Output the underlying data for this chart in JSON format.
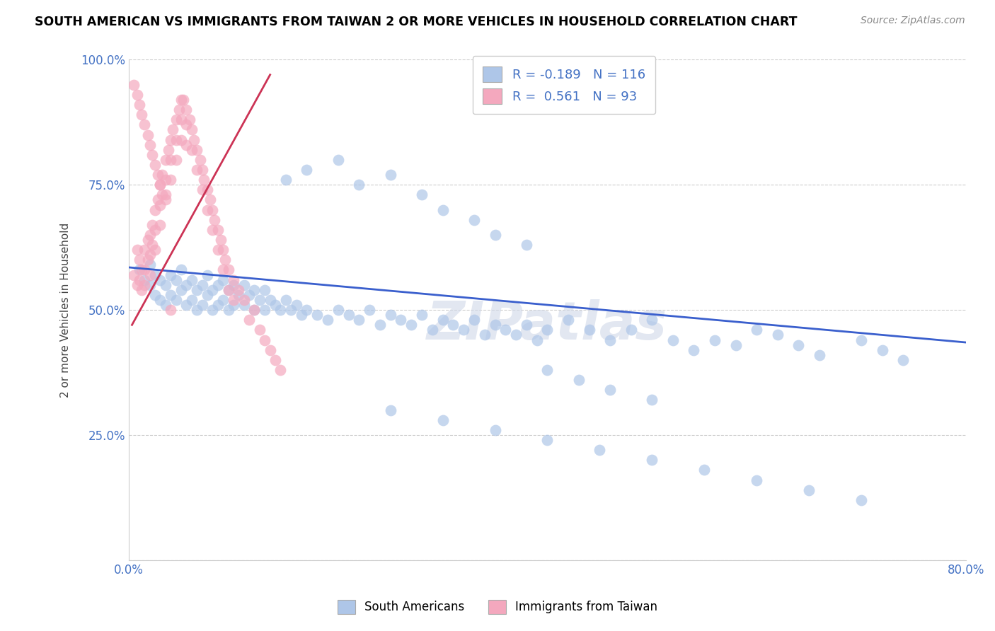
{
  "title": "SOUTH AMERICAN VS IMMIGRANTS FROM TAIWAN 2 OR MORE VEHICLES IN HOUSEHOLD CORRELATION CHART",
  "source": "Source: ZipAtlas.com",
  "ylabel": "2 or more Vehicles in Household",
  "xmin": 0.0,
  "xmax": 0.8,
  "ymin": 0.0,
  "ymax": 1.0,
  "blue_color": "#aec6e8",
  "pink_color": "#f4a8be",
  "blue_line_color": "#3a5fcd",
  "pink_line_color": "#cc3355",
  "legend_blue_r": "-0.189",
  "legend_blue_n": "116",
  "legend_pink_r": "0.561",
  "legend_pink_n": "93",
  "legend_blue_label": "South Americans",
  "legend_pink_label": "Immigrants from Taiwan",
  "blue_line_x0": 0.0,
  "blue_line_y0": 0.585,
  "blue_line_x1": 0.8,
  "blue_line_y1": 0.435,
  "pink_line_x0": 0.003,
  "pink_line_y0": 0.47,
  "pink_line_x1": 0.135,
  "pink_line_y1": 0.97,
  "blue_scatter_x": [
    0.01,
    0.015,
    0.02,
    0.02,
    0.025,
    0.025,
    0.03,
    0.03,
    0.035,
    0.035,
    0.04,
    0.04,
    0.045,
    0.045,
    0.05,
    0.05,
    0.055,
    0.055,
    0.06,
    0.06,
    0.065,
    0.065,
    0.07,
    0.07,
    0.075,
    0.075,
    0.08,
    0.08,
    0.085,
    0.085,
    0.09,
    0.09,
    0.095,
    0.095,
    0.1,
    0.1,
    0.105,
    0.11,
    0.11,
    0.115,
    0.12,
    0.12,
    0.125,
    0.13,
    0.13,
    0.135,
    0.14,
    0.145,
    0.15,
    0.155,
    0.16,
    0.165,
    0.17,
    0.18,
    0.19,
    0.2,
    0.21,
    0.22,
    0.23,
    0.24,
    0.25,
    0.26,
    0.27,
    0.28,
    0.29,
    0.3,
    0.31,
    0.32,
    0.33,
    0.34,
    0.35,
    0.36,
    0.37,
    0.38,
    0.39,
    0.4,
    0.42,
    0.44,
    0.46,
    0.48,
    0.5,
    0.52,
    0.54,
    0.56,
    0.58,
    0.6,
    0.62,
    0.64,
    0.66,
    0.7,
    0.72,
    0.74,
    0.15,
    0.17,
    0.2,
    0.22,
    0.25,
    0.28,
    0.3,
    0.33,
    0.35,
    0.38,
    0.4,
    0.43,
    0.46,
    0.5,
    0.25,
    0.3,
    0.35,
    0.4,
    0.45,
    0.5,
    0.55,
    0.6,
    0.65,
    0.7
  ],
  "blue_scatter_y": [
    0.58,
    0.56,
    0.59,
    0.55,
    0.57,
    0.53,
    0.56,
    0.52,
    0.55,
    0.51,
    0.57,
    0.53,
    0.56,
    0.52,
    0.58,
    0.54,
    0.55,
    0.51,
    0.56,
    0.52,
    0.54,
    0.5,
    0.55,
    0.51,
    0.53,
    0.57,
    0.54,
    0.5,
    0.55,
    0.51,
    0.56,
    0.52,
    0.54,
    0.5,
    0.55,
    0.51,
    0.53,
    0.55,
    0.51,
    0.53,
    0.54,
    0.5,
    0.52,
    0.54,
    0.5,
    0.52,
    0.51,
    0.5,
    0.52,
    0.5,
    0.51,
    0.49,
    0.5,
    0.49,
    0.48,
    0.5,
    0.49,
    0.48,
    0.5,
    0.47,
    0.49,
    0.48,
    0.47,
    0.49,
    0.46,
    0.48,
    0.47,
    0.46,
    0.48,
    0.45,
    0.47,
    0.46,
    0.45,
    0.47,
    0.44,
    0.46,
    0.48,
    0.46,
    0.44,
    0.46,
    0.48,
    0.44,
    0.42,
    0.44,
    0.43,
    0.46,
    0.45,
    0.43,
    0.41,
    0.44,
    0.42,
    0.4,
    0.76,
    0.78,
    0.8,
    0.75,
    0.77,
    0.73,
    0.7,
    0.68,
    0.65,
    0.63,
    0.38,
    0.36,
    0.34,
    0.32,
    0.3,
    0.28,
    0.26,
    0.24,
    0.22,
    0.2,
    0.18,
    0.16,
    0.14,
    0.12
  ],
  "pink_scatter_x": [
    0.005,
    0.008,
    0.008,
    0.01,
    0.01,
    0.012,
    0.012,
    0.015,
    0.015,
    0.015,
    0.018,
    0.018,
    0.02,
    0.02,
    0.02,
    0.022,
    0.022,
    0.025,
    0.025,
    0.025,
    0.028,
    0.03,
    0.03,
    0.03,
    0.032,
    0.032,
    0.035,
    0.035,
    0.035,
    0.038,
    0.04,
    0.04,
    0.04,
    0.042,
    0.045,
    0.045,
    0.045,
    0.048,
    0.05,
    0.05,
    0.05,
    0.052,
    0.055,
    0.055,
    0.055,
    0.058,
    0.06,
    0.06,
    0.062,
    0.065,
    0.065,
    0.068,
    0.07,
    0.07,
    0.072,
    0.075,
    0.075,
    0.078,
    0.08,
    0.08,
    0.082,
    0.085,
    0.085,
    0.088,
    0.09,
    0.09,
    0.092,
    0.095,
    0.095,
    0.1,
    0.1,
    0.105,
    0.11,
    0.115,
    0.12,
    0.125,
    0.13,
    0.135,
    0.14,
    0.145,
    0.005,
    0.008,
    0.01,
    0.012,
    0.015,
    0.018,
    0.02,
    0.022,
    0.025,
    0.028,
    0.03,
    0.035,
    0.04
  ],
  "pink_scatter_y": [
    0.57,
    0.62,
    0.55,
    0.6,
    0.56,
    0.58,
    0.54,
    0.62,
    0.58,
    0.55,
    0.64,
    0.6,
    0.65,
    0.61,
    0.57,
    0.67,
    0.63,
    0.7,
    0.66,
    0.62,
    0.72,
    0.75,
    0.71,
    0.67,
    0.77,
    0.73,
    0.8,
    0.76,
    0.72,
    0.82,
    0.84,
    0.8,
    0.76,
    0.86,
    0.88,
    0.84,
    0.8,
    0.9,
    0.92,
    0.88,
    0.84,
    0.92,
    0.9,
    0.87,
    0.83,
    0.88,
    0.86,
    0.82,
    0.84,
    0.82,
    0.78,
    0.8,
    0.78,
    0.74,
    0.76,
    0.74,
    0.7,
    0.72,
    0.7,
    0.66,
    0.68,
    0.66,
    0.62,
    0.64,
    0.62,
    0.58,
    0.6,
    0.58,
    0.54,
    0.56,
    0.52,
    0.54,
    0.52,
    0.48,
    0.5,
    0.46,
    0.44,
    0.42,
    0.4,
    0.38,
    0.95,
    0.93,
    0.91,
    0.89,
    0.87,
    0.85,
    0.83,
    0.81,
    0.79,
    0.77,
    0.75,
    0.73,
    0.5
  ]
}
